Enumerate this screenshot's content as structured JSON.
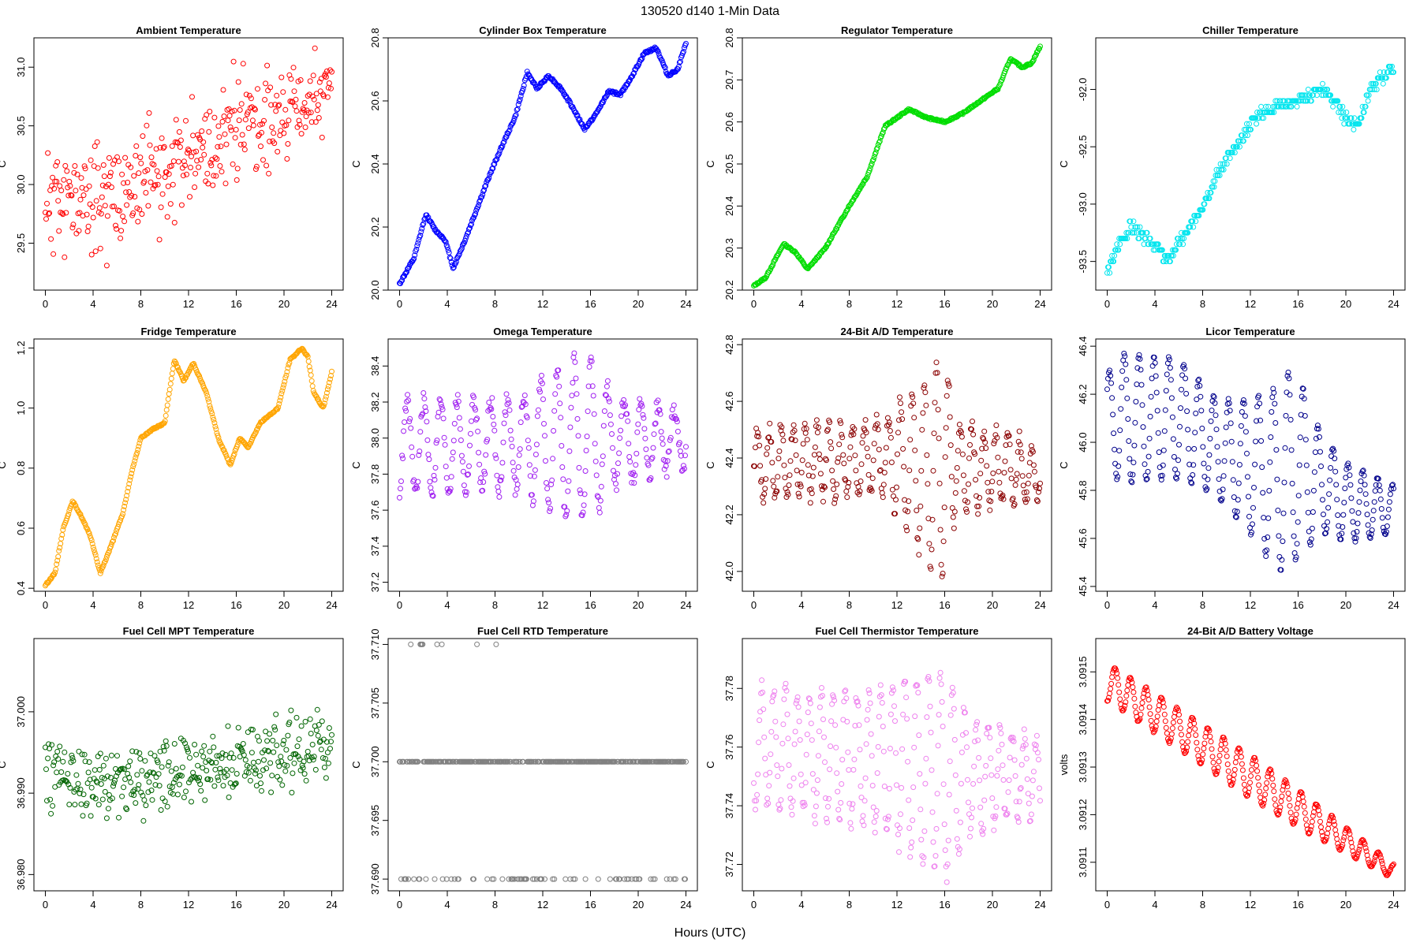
{
  "figure": {
    "title": "130520   d140   1-Min Data",
    "xlabel": "Hours (UTC)"
  },
  "chart_data": [
    {
      "type": "scatter",
      "title": "Ambient Temperature",
      "ylabel": "C",
      "color": "#ff0000",
      "xlim": [
        0,
        24
      ],
      "ylim": [
        29.1,
        31.25
      ],
      "yticks": [
        29.5,
        30.0,
        30.5,
        31.0
      ],
      "ytick_labels": [
        "29.5",
        "30.0",
        "30.5",
        "31.0"
      ],
      "xticks": [
        0,
        4,
        8,
        12,
        16,
        20,
        24
      ],
      "xtick_labels": [
        "0",
        "4",
        "8",
        "12",
        "16",
        "20",
        "24"
      ],
      "trend": [
        [
          0,
          29.85
        ],
        [
          4,
          29.9
        ],
        [
          8,
          30.0
        ],
        [
          12,
          30.2
        ],
        [
          16,
          30.5
        ],
        [
          20,
          30.6
        ],
        [
          24,
          30.8
        ]
      ],
      "noise": 0.35,
      "pattern": "noisy",
      "seed": 11
    },
    {
      "type": "scatter",
      "title": "Cylinder Box Temperature",
      "ylabel": "C",
      "color": "#0000ff",
      "xlim": [
        0,
        24
      ],
      "ylim": [
        20.0,
        20.8
      ],
      "yticks": [
        20.0,
        20.2,
        20.4,
        20.6,
        20.8
      ],
      "ytick_labels": [
        "20.0",
        "20.2",
        "20.4",
        "20.6",
        "20.8"
      ],
      "xticks": [
        0,
        4,
        8,
        12,
        16,
        20,
        24
      ],
      "xtick_labels": [
        "0",
        "4",
        "8",
        "12",
        "16",
        "20",
        "24"
      ],
      "trend": [
        [
          0,
          20.02
        ],
        [
          1.2,
          20.1
        ],
        [
          2.2,
          20.24
        ],
        [
          3,
          20.19
        ],
        [
          3.8,
          20.16
        ],
        [
          4.5,
          20.07
        ],
        [
          5.5,
          20.16
        ],
        [
          7.5,
          20.36
        ],
        [
          8.5,
          20.45
        ],
        [
          9.7,
          20.55
        ],
        [
          10.7,
          20.69
        ],
        [
          11.5,
          20.64
        ],
        [
          12.5,
          20.68
        ],
        [
          13.5,
          20.64
        ],
        [
          14.5,
          20.58
        ],
        [
          15.5,
          20.51
        ],
        [
          16.5,
          20.56
        ],
        [
          17.5,
          20.63
        ],
        [
          18.5,
          20.62
        ],
        [
          19.5,
          20.68
        ],
        [
          20.5,
          20.75
        ],
        [
          21.5,
          20.77
        ],
        [
          22.5,
          20.68
        ],
        [
          23.3,
          20.7
        ],
        [
          24,
          20.78
        ]
      ],
      "noise": 0.008,
      "pattern": "smooth",
      "seed": 12
    },
    {
      "type": "scatter",
      "title": "Regulator Temperature",
      "ylabel": "C",
      "color": "#00dd00",
      "xlim": [
        0,
        24
      ],
      "ylim": [
        20.2,
        20.8
      ],
      "yticks": [
        20.2,
        20.3,
        20.4,
        20.5,
        20.6,
        20.7,
        20.8
      ],
      "ytick_labels": [
        "20.2",
        "20.3",
        "20.4",
        "20.5",
        "20.6",
        "20.7",
        "20.8"
      ],
      "xticks": [
        0,
        4,
        8,
        12,
        16,
        20,
        24
      ],
      "xtick_labels": [
        "0",
        "4",
        "8",
        "12",
        "16",
        "20",
        "24"
      ],
      "trend": [
        [
          0,
          20.21
        ],
        [
          1,
          20.23
        ],
        [
          2.5,
          20.31
        ],
        [
          3.5,
          20.29
        ],
        [
          4.5,
          20.25
        ],
        [
          6,
          20.3
        ],
        [
          8,
          20.4
        ],
        [
          9.5,
          20.47
        ],
        [
          11,
          20.59
        ],
        [
          13,
          20.63
        ],
        [
          14.5,
          20.61
        ],
        [
          16,
          20.6
        ],
        [
          17.5,
          20.62
        ],
        [
          19,
          20.65
        ],
        [
          20.5,
          20.68
        ],
        [
          21.5,
          20.75
        ],
        [
          22.5,
          20.73
        ],
        [
          23.3,
          20.74
        ],
        [
          24,
          20.78
        ]
      ],
      "noise": 0.004,
      "pattern": "smooth",
      "seed": 13
    },
    {
      "type": "scatter",
      "title": "Chiller Temperature",
      "ylabel": "C",
      "color": "#00e5ee",
      "xlim": [
        0,
        24
      ],
      "ylim": [
        -93.75,
        -91.55
      ],
      "yticks": [
        -93.5,
        -93.0,
        -92.5,
        -92.0
      ],
      "ytick_labels": [
        "-93.5",
        "-93.0",
        "-92.5",
        "-92.0"
      ],
      "xticks": [
        0,
        4,
        8,
        12,
        16,
        20,
        24
      ],
      "xtick_labels": [
        "0",
        "4",
        "8",
        "12",
        "16",
        "20",
        "24"
      ],
      "trend": [
        [
          0,
          -93.6
        ],
        [
          1,
          -93.35
        ],
        [
          2,
          -93.2
        ],
        [
          4,
          -93.35
        ],
        [
          5,
          -93.5
        ],
        [
          6,
          -93.35
        ],
        [
          7,
          -93.2
        ],
        [
          8,
          -93.0
        ],
        [
          9,
          -92.8
        ],
        [
          10,
          -92.6
        ],
        [
          11,
          -92.5
        ],
        [
          12,
          -92.3
        ],
        [
          13,
          -92.2
        ],
        [
          14,
          -92.15
        ],
        [
          16,
          -92.1
        ],
        [
          18,
          -92.0
        ],
        [
          19,
          -92.1
        ],
        [
          20,
          -92.25
        ],
        [
          21,
          -92.3
        ],
        [
          22,
          -92.0
        ],
        [
          24,
          -91.8
        ]
      ],
      "noise": 0.1,
      "pattern": "quantized",
      "step": 0.05,
      "seed": 14
    },
    {
      "type": "scatter",
      "title": "Fridge Temperature",
      "ylabel": "C",
      "color": "#ffa500",
      "xlim": [
        0,
        24
      ],
      "ylim": [
        0.39,
        1.23
      ],
      "yticks": [
        0.4,
        0.6,
        0.8,
        1.0,
        1.2
      ],
      "ytick_labels": [
        "0.4",
        "0.6",
        "0.8",
        "1.0",
        "1.2"
      ],
      "xticks": [
        0,
        4,
        8,
        12,
        16,
        20,
        24
      ],
      "xtick_labels": [
        "0",
        "4",
        "8",
        "12",
        "16",
        "20",
        "24"
      ],
      "trend": [
        [
          0,
          0.41
        ],
        [
          0.8,
          0.45
        ],
        [
          1.5,
          0.6
        ],
        [
          2.3,
          0.69
        ],
        [
          3,
          0.64
        ],
        [
          3.8,
          0.57
        ],
        [
          4.6,
          0.45
        ],
        [
          5.5,
          0.54
        ],
        [
          6.5,
          0.65
        ],
        [
          7.2,
          0.78
        ],
        [
          8,
          0.9
        ],
        [
          9,
          0.93
        ],
        [
          10,
          0.95
        ],
        [
          10.8,
          1.16
        ],
        [
          11.6,
          1.09
        ],
        [
          12.4,
          1.15
        ],
        [
          13.5,
          1.05
        ],
        [
          14.5,
          0.9
        ],
        [
          15.5,
          0.81
        ],
        [
          16.3,
          0.9
        ],
        [
          17,
          0.87
        ],
        [
          18,
          0.95
        ],
        [
          19.5,
          1.0
        ],
        [
          20.5,
          1.16
        ],
        [
          21.5,
          1.2
        ],
        [
          22,
          1.17
        ],
        [
          22.5,
          1.05
        ],
        [
          23.3,
          1.0
        ],
        [
          24,
          1.12
        ]
      ],
      "noise": 0.005,
      "pattern": "smooth",
      "seed": 15
    },
    {
      "type": "scatter",
      "title": "Omega Temperature",
      "ylabel": "C",
      "color": "#a020f0",
      "xlim": [
        0,
        24
      ],
      "ylim": [
        37.15,
        38.55
      ],
      "yticks": [
        37.2,
        37.4,
        37.6,
        37.8,
        38.0,
        38.2,
        38.4
      ],
      "ytick_labels": [
        "37.2",
        "37.4",
        "37.6",
        "37.8",
        "38.0",
        "38.2",
        "38.4"
      ],
      "xticks": [
        0,
        4,
        8,
        12,
        16,
        20,
        24
      ],
      "xtick_labels": [
        "0",
        "4",
        "8",
        "12",
        "16",
        "20",
        "24"
      ],
      "trend": [
        [
          0,
          37.95
        ],
        [
          24,
          38.0
        ]
      ],
      "noise": 0.05,
      "pattern": "oscillate",
      "amp": [
        [
          0,
          0.25
        ],
        [
          10,
          0.25
        ],
        [
          12,
          0.35
        ],
        [
          14.5,
          0.45
        ],
        [
          16,
          0.45
        ],
        [
          18,
          0.25
        ],
        [
          24,
          0.15
        ]
      ],
      "period": 1.4,
      "seed": 16
    },
    {
      "type": "scatter",
      "title": "24-Bit A/D Temperature",
      "ylabel": "C",
      "color": "#8b0000",
      "xlim": [
        0,
        24
      ],
      "ylim": [
        41.93,
        42.82
      ],
      "yticks": [
        42.0,
        42.2,
        42.4,
        42.6,
        42.8
      ],
      "ytick_labels": [
        "42.0",
        "42.2",
        "42.4",
        "42.6",
        "42.8"
      ],
      "xticks": [
        0,
        4,
        8,
        12,
        16,
        20,
        24
      ],
      "xtick_labels": [
        "0",
        "4",
        "8",
        "12",
        "16",
        "20",
        "24"
      ],
      "trend": [
        [
          0,
          42.38
        ],
        [
          12,
          42.4
        ],
        [
          15,
          42.35
        ],
        [
          16,
          42.38
        ],
        [
          24,
          42.35
        ]
      ],
      "noise": 0.03,
      "pattern": "oscillate",
      "amp": [
        [
          0,
          0.12
        ],
        [
          11,
          0.13
        ],
        [
          13,
          0.25
        ],
        [
          15,
          0.35
        ],
        [
          16,
          0.38
        ],
        [
          17,
          0.15
        ],
        [
          24,
          0.1
        ]
      ],
      "period": 1.0,
      "seed": 17
    },
    {
      "type": "scatter",
      "title": "Licor Temperature",
      "ylabel": "C",
      "color": "#00008b",
      "xlim": [
        0,
        24
      ],
      "ylim": [
        45.38,
        46.43
      ],
      "yticks": [
        45.4,
        45.6,
        45.8,
        46.0,
        46.2,
        46.4
      ],
      "ytick_labels": [
        "45.4",
        "45.6",
        "45.8",
        "46.0",
        "46.2",
        "46.4"
      ],
      "xticks": [
        0,
        4,
        8,
        12,
        16,
        20,
        24
      ],
      "xtick_labels": [
        "0",
        "4",
        "8",
        "12",
        "16",
        "20",
        "24"
      ],
      "trend": [
        [
          0,
          46.1
        ],
        [
          6,
          46.1
        ],
        [
          10,
          45.95
        ],
        [
          14,
          45.85
        ],
        [
          16,
          45.9
        ],
        [
          20,
          45.75
        ],
        [
          24,
          45.72
        ]
      ],
      "noise": 0.005,
      "pattern": "oscillate",
      "amp": [
        [
          0,
          0.18
        ],
        [
          1,
          0.27
        ],
        [
          6,
          0.25
        ],
        [
          9,
          0.2
        ],
        [
          12,
          0.28
        ],
        [
          15,
          0.42
        ],
        [
          16,
          0.38
        ],
        [
          18,
          0.2
        ],
        [
          24,
          0.1
        ]
      ],
      "period": 1.25,
      "seed": 18
    },
    {
      "type": "scatter",
      "title": "Fuel Cell MPT Temperature",
      "ylabel": "C",
      "color": "#006400",
      "xlim": [
        0,
        24
      ],
      "ylim": [
        36.978,
        37.009
      ],
      "yticks": [
        36.98,
        36.99,
        37.0
      ],
      "ytick_labels": [
        "36.980",
        "36.990",
        "37.000"
      ],
      "xticks": [
        0,
        4,
        8,
        12,
        16,
        20,
        24
      ],
      "xtick_labels": [
        "0",
        "4",
        "8",
        "12",
        "16",
        "20",
        "24"
      ],
      "trend": [
        [
          0,
          36.993
        ],
        [
          5,
          36.991
        ],
        [
          12,
          36.993
        ],
        [
          16,
          36.994
        ],
        [
          24,
          36.996
        ]
      ],
      "noise": 0.0035,
      "pattern": "noisy",
      "seed": 19
    },
    {
      "type": "scatter",
      "title": "Fuel Cell RTD Temperature",
      "ylabel": "C",
      "color": "#808080",
      "xlim": [
        0,
        24
      ],
      "ylim": [
        37.689,
        37.7105
      ],
      "yticks": [
        37.69,
        37.695,
        37.7,
        37.705,
        37.71
      ],
      "ytick_labels": [
        "37.690",
        "37.695",
        "37.700",
        "37.705",
        "37.710"
      ],
      "xticks": [
        0,
        4,
        8,
        12,
        16,
        20,
        24
      ],
      "xtick_labels": [
        "0",
        "4",
        "8",
        "12",
        "16",
        "20",
        "24"
      ],
      "trend": [
        [
          0,
          37.7
        ],
        [
          24,
          37.7
        ]
      ],
      "noise": 0,
      "pattern": "levels",
      "levels": [
        37.69,
        37.7,
        37.71
      ],
      "seed": 20
    },
    {
      "type": "scatter",
      "title": "Fuel Cell Thermistor Temperature",
      "ylabel": "C",
      "color": "#ee82ee",
      "xlim": [
        0,
        24
      ],
      "ylim": [
        37.711,
        37.797
      ],
      "yticks": [
        37.72,
        37.74,
        37.76,
        37.78
      ],
      "ytick_labels": [
        "37.72",
        "37.74",
        "37.76",
        "37.78"
      ],
      "xticks": [
        0,
        4,
        8,
        12,
        16,
        20,
        24
      ],
      "xtick_labels": [
        "0",
        "4",
        "8",
        "12",
        "16",
        "20",
        "24"
      ],
      "trend": [
        [
          0,
          37.76
        ],
        [
          12,
          37.755
        ],
        [
          16,
          37.75
        ],
        [
          24,
          37.75
        ]
      ],
      "noise": 0.003,
      "pattern": "oscillate",
      "amp": [
        [
          0,
          0.02
        ],
        [
          10,
          0.022
        ],
        [
          13,
          0.03
        ],
        [
          15,
          0.034
        ],
        [
          16,
          0.036
        ],
        [
          18,
          0.02
        ],
        [
          24,
          0.012
        ]
      ],
      "period": 1.0,
      "seed": 21
    },
    {
      "type": "scatter",
      "title": "24-Bit A/D Battery Voltage",
      "ylabel": "volts",
      "color": "#ff0000",
      "xlim": [
        0,
        24
      ],
      "ylim": [
        3.09104,
        3.09157
      ],
      "yticks": [
        3.0911,
        3.0912,
        3.0913,
        3.0914,
        3.0915
      ],
      "ytick_labels": [
        "3.0911",
        "3.0912",
        "3.0913",
        "3.0914",
        "3.0915"
      ],
      "xticks": [
        0,
        4,
        8,
        12,
        16,
        20,
        24
      ],
      "xtick_labels": [
        "0",
        "4",
        "8",
        "12",
        "16",
        "20",
        "24"
      ],
      "trend": [
        [
          0,
          3.09148
        ],
        [
          24,
          3.09108
        ]
      ],
      "noise": 1.5e-06,
      "pattern": "oscillate",
      "amp": [
        [
          0,
          4e-05
        ],
        [
          12,
          4.5e-05
        ],
        [
          16,
          4e-05
        ],
        [
          24,
          1.5e-05
        ]
      ],
      "period": 1.3,
      "seed": 22
    }
  ]
}
